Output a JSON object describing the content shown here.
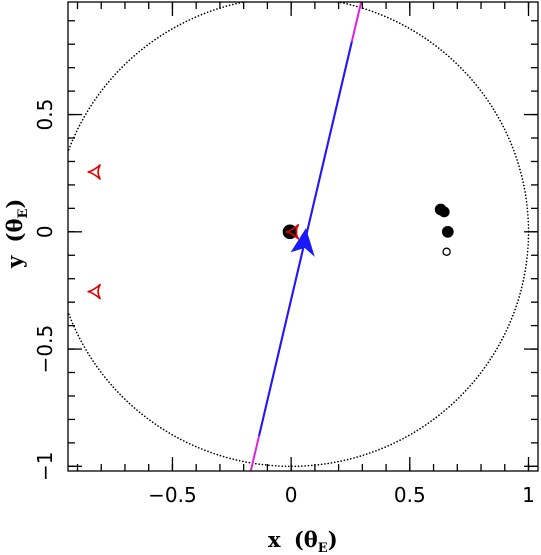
{
  "chart_data": {
    "type": "scatter",
    "title": "",
    "xlabel": "x",
    "ylabel": "y",
    "axis_unit": "θ",
    "axis_unit_sub": "E",
    "xlim": [
      -0.94,
      1.04
    ],
    "ylim": [
      -1.02,
      0.98
    ],
    "x_ticks": [
      -0.5,
      0,
      0.5,
      1
    ],
    "x_tick_labels": [
      "−0.5",
      "0",
      "0.5",
      "1"
    ],
    "y_ticks": [
      -1,
      -0.5,
      0,
      0.5
    ],
    "y_tick_labels": [
      "−1",
      "−0.5",
      "0",
      "0.5"
    ],
    "grid": false,
    "einstein_ring": {
      "center": [
        0,
        0
      ],
      "radius": 1.0,
      "style": "dotted",
      "color": "#000000"
    },
    "source_trajectory": {
      "points": [
        [
          -0.17,
          -1.02
        ],
        [
          0.295,
          0.98
        ]
      ],
      "colors": {
        "inner": "#1a1aff",
        "outer": "#e020e0"
      }
    },
    "source_marker": {
      "x": 0.045,
      "y": -0.045,
      "color": "#1a1aff",
      "shape": "arrow"
    },
    "lens_components": [
      {
        "x": -0.005,
        "y": 0.0,
        "r": 0.028,
        "fill": "#000000"
      },
      {
        "x": 0.63,
        "y": 0.095,
        "r": 0.022,
        "fill": "#000000"
      },
      {
        "x": 0.645,
        "y": 0.085,
        "r": 0.02,
        "fill": "#000000"
      },
      {
        "x": 0.66,
        "y": 0.0,
        "r": 0.022,
        "fill": "#000000"
      },
      {
        "x": 0.655,
        "y": -0.085,
        "r": 0.015,
        "fill": "#ffffff"
      }
    ],
    "caustics": [
      {
        "x": -0.83,
        "y": 0.255,
        "color": "#e00000"
      },
      {
        "x": -0.83,
        "y": -0.255,
        "color": "#e00000"
      },
      {
        "x": 0.005,
        "y": 0.0,
        "color": "#e00000"
      }
    ]
  }
}
